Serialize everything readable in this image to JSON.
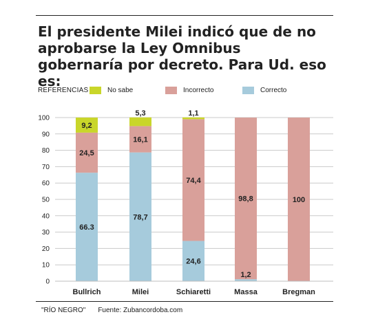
{
  "title": "El presidente Milei indicó que de no aprobarse la Ley Omnibus gobernaría por decreto. Para Ud. eso es:",
  "legend": {
    "title": "REFERENCIAS",
    "items": [
      {
        "label": "No sabe",
        "color": "#c9d62a"
      },
      {
        "label": "Incorrecto",
        "color": "#d9a09a"
      },
      {
        "label": "Correcto",
        "color": "#a6cbdc"
      }
    ]
  },
  "footer": {
    "credit": "\"RÍO NEGRO\"",
    "source": "Fuente: Zubancordoba.com"
  },
  "chart_data": {
    "type": "bar",
    "stacked": true,
    "categories": [
      "Bullrich",
      "Milei",
      "Schiaretti",
      "Massa",
      "Bregman"
    ],
    "series": [
      {
        "name": "Correcto",
        "color": "#a6cbdc",
        "values": [
          66.3,
          78.7,
          24.6,
          1.2,
          0
        ],
        "labels": [
          "66.3",
          "78,7",
          "24,6",
          "1,2",
          ""
        ]
      },
      {
        "name": "Incorrecto",
        "color": "#d9a09a",
        "values": [
          24.5,
          16.1,
          74.4,
          98.8,
          100
        ],
        "labels": [
          "24,5",
          "16,1",
          "74,4",
          "98,8",
          "100"
        ]
      },
      {
        "name": "No sabe",
        "color": "#c9d62a",
        "values": [
          9.2,
          5.3,
          1.1,
          0,
          0
        ],
        "labels": [
          "9,2",
          "5,3",
          "1,1",
          "",
          ""
        ]
      }
    ],
    "ylim": [
      0,
      100
    ],
    "yticks": [
      0,
      10,
      20,
      30,
      40,
      50,
      60,
      70,
      80,
      90,
      100
    ],
    "grid": true,
    "legend_position": "top-left"
  }
}
